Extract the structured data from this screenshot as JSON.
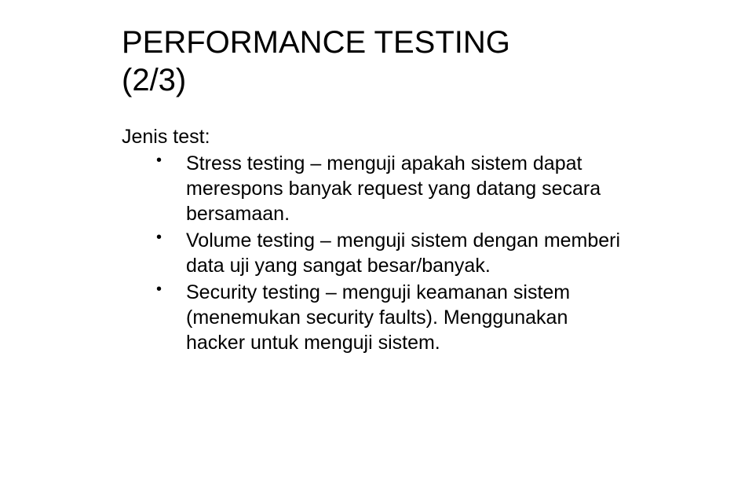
{
  "title_line1": "PERFORMANCE TESTING",
  "title_line2": "(2/3)",
  "intro": "Jenis test:",
  "bullets": [
    "Stress testing – menguji apakah sistem dapat merespons banyak request yang datang secara bersamaan.",
    "Volume testing – menguji sistem dengan memberi data uji yang sangat besar/banyak.",
    "Security testing – menguji keamanan sistem (menemukan security faults). Menggunakan hacker untuk menguji sistem."
  ],
  "styles": {
    "background_color": "#ffffff",
    "text_color": "#000000",
    "title_fontsize": 40,
    "body_fontsize": 25,
    "font_family": "Arial, Helvetica, sans-serif"
  }
}
